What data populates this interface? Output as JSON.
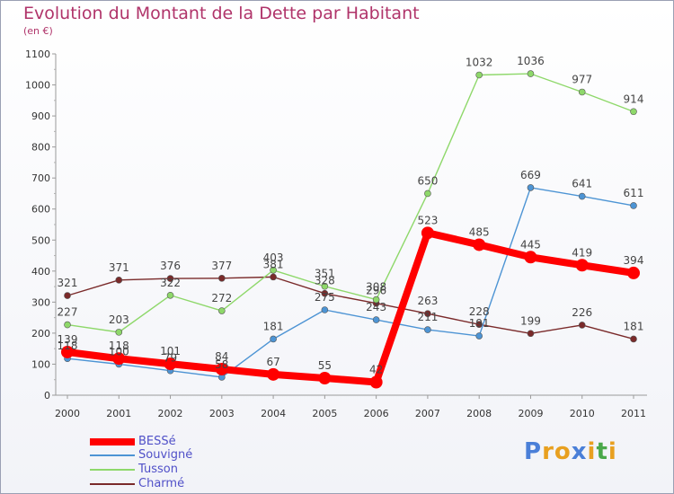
{
  "header": {
    "title": "Evolution du Montant de la Dette par Habitant",
    "subtitle": "(en €)"
  },
  "logo": {
    "letters": [
      "P",
      "r",
      "o",
      "x",
      "i",
      "t",
      "i"
    ],
    "colors": [
      "#4a7fd8",
      "#e8a020",
      "#e8a020",
      "#4a7fd8",
      "#e8a020",
      "#4aa84a",
      "#e8a020"
    ]
  },
  "chart_data": {
    "type": "line",
    "title": "Evolution du Montant de la Dette par Habitant",
    "subtitle": "(en €)",
    "x": [
      "2000",
      "2001",
      "2002",
      "2003",
      "2004",
      "2005",
      "2006",
      "2007",
      "2008",
      "2009",
      "2010",
      "2011"
    ],
    "yticks": [
      "0",
      "100",
      "200",
      "300",
      "400",
      "500",
      "600",
      "700",
      "800",
      "900",
      "1000",
      "1100"
    ],
    "ylim": [
      0,
      1100
    ],
    "grid": false,
    "legend_position": "bottom-left",
    "series": [
      {
        "name": "BESSé",
        "color": "#ff0000",
        "values": [
          139,
          118,
          101,
          84,
          67,
          55,
          42,
          523,
          485,
          445,
          419,
          394
        ],
        "labels": [
          "139",
          "118",
          "101",
          "84",
          "67",
          "55",
          "42",
          "523",
          "485",
          "445",
          "419",
          "394"
        ]
      },
      {
        "name": "Souvigné",
        "color": "#4d94d4",
        "values": [
          118,
          100,
          79,
          58,
          181,
          275,
          243,
          211,
          191,
          669,
          641,
          611
        ],
        "labels": [
          "118",
          "100",
          "79",
          "58",
          "181",
          "275",
          "243",
          "211",
          "191",
          "669",
          "641",
          "611"
        ]
      },
      {
        "name": "Tusson",
        "color": "#8ed86a",
        "values": [
          227,
          203,
          322,
          272,
          403,
          351,
          308,
          650,
          1032,
          1036,
          977,
          914
        ],
        "labels": [
          "227",
          "203",
          "322",
          "272",
          "403",
          "351",
          "308",
          "650",
          "1032",
          "1036",
          "977",
          "914"
        ]
      },
      {
        "name": "Charmé",
        "color": "#7a2a2a",
        "values": [
          321,
          371,
          376,
          377,
          381,
          328,
          296,
          263,
          228,
          199,
          226,
          181
        ],
        "labels": [
          "321",
          "371",
          "376",
          "377",
          "381",
          "328",
          "296",
          "263",
          "228",
          "199",
          "226",
          "181"
        ]
      }
    ]
  }
}
